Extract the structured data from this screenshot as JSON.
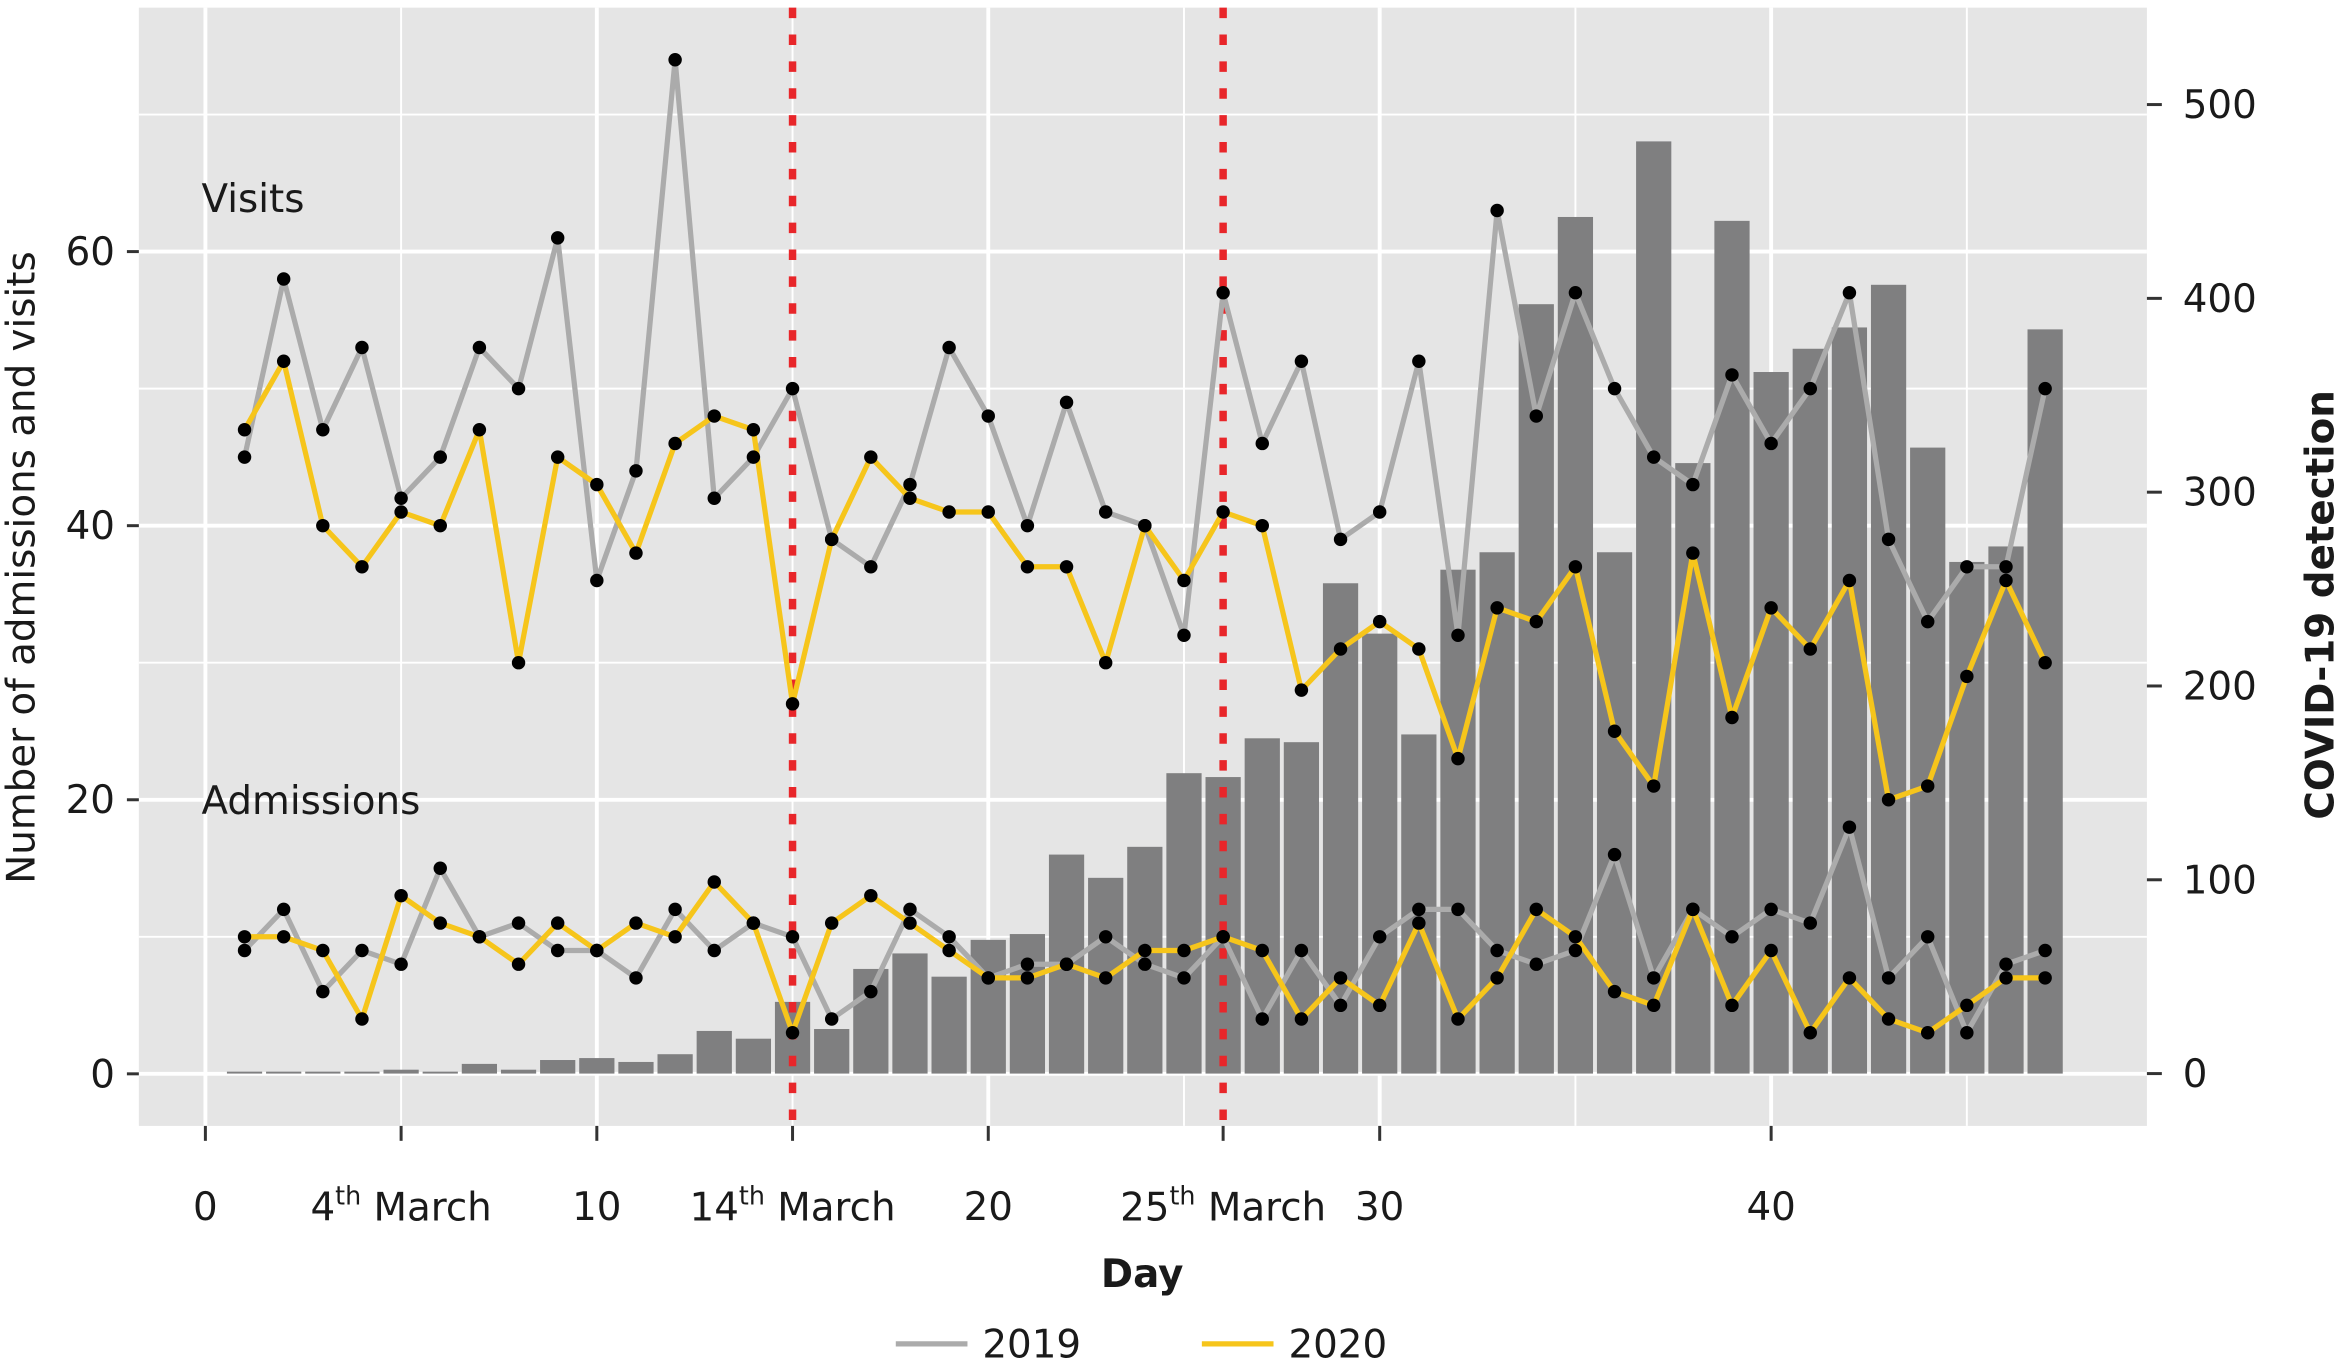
{
  "chart_data": {
    "type": "line",
    "x_label": "Day",
    "y_label": "Number of admissions and visits",
    "y2_label": "COVID-19 detection",
    "annotations": [
      "Visits",
      "Admissions"
    ],
    "x": [
      1,
      2,
      3,
      4,
      5,
      6,
      7,
      8,
      9,
      10,
      11,
      12,
      13,
      14,
      15,
      16,
      17,
      18,
      19,
      20,
      21,
      22,
      23,
      24,
      25,
      26,
      27,
      28,
      29,
      30,
      31,
      32,
      33,
      34,
      35,
      36,
      37,
      38,
      39,
      40,
      41,
      42,
      43,
      44,
      45,
      46,
      47
    ],
    "series": [
      {
        "name": "2019",
        "color": "#ababab",
        "values": [
          45,
          58,
          47,
          53,
          42,
          45,
          53,
          50,
          61,
          36,
          44,
          74,
          42,
          45,
          50,
          39,
          37,
          43,
          53,
          48,
          40,
          49,
          41,
          40,
          32,
          57,
          46,
          52,
          39,
          41,
          52,
          32,
          63,
          48,
          57,
          50,
          45,
          43,
          51,
          46,
          50,
          57,
          39,
          33,
          37,
          37,
          50
        ]
      },
      {
        "name": "2020",
        "color": "#f6c51b",
        "values": [
          47,
          52,
          40,
          37,
          41,
          40,
          47,
          30,
          45,
          43,
          38,
          46,
          48,
          47,
          27,
          39,
          45,
          42,
          41,
          41,
          37,
          37,
          30,
          40,
          36,
          41,
          40,
          28,
          31,
          33,
          31,
          23,
          34,
          33,
          37,
          25,
          21,
          38,
          26,
          34,
          31,
          36,
          20,
          21,
          29,
          36,
          30
        ]
      },
      {
        "color": "#ababab",
        "values": [
          9,
          12,
          6,
          9,
          8,
          15,
          10,
          11,
          9,
          9,
          7,
          12,
          9,
          11,
          10,
          4,
          6,
          12,
          10,
          7,
          8,
          8,
          10,
          8,
          7,
          10,
          4,
          9,
          5,
          10,
          12,
          12,
          9,
          8,
          9,
          16,
          7,
          12,
          10,
          12,
          11,
          18,
          7,
          10,
          3,
          8,
          9
        ]
      },
      {
        "color": "#f6c51b",
        "values": [
          10,
          10,
          9,
          4,
          13,
          11,
          10,
          8,
          11,
          9,
          11,
          10,
          14,
          11,
          3,
          11,
          13,
          11,
          9,
          7,
          7,
          8,
          7,
          9,
          9,
          10,
          9,
          4,
          7,
          5,
          11,
          4,
          7,
          12,
          10,
          6,
          5,
          12,
          5,
          9,
          3,
          7,
          4,
          3,
          5,
          7,
          7
        ]
      },
      {
        "type": "bar",
        "axis": "y2",
        "color": "#7f7f80",
        "values": [
          1,
          1,
          1,
          1,
          2,
          1,
          5,
          2,
          7,
          8,
          6,
          10,
          22,
          18,
          37,
          23,
          54,
          62,
          50,
          69,
          72,
          113,
          101,
          117,
          155,
          153,
          173,
          171,
          253,
          227,
          175,
          260,
          269,
          397,
          442,
          269,
          481,
          315,
          440,
          362,
          374,
          385,
          407,
          323,
          264,
          272,
          384
        ]
      }
    ],
    "marker_color": "#000000",
    "xlim": [
      -1.7,
      49.6
    ],
    "xticks": [
      0,
      {
        "value": 5,
        "label": "4th March"
      },
      10,
      {
        "value": 15,
        "label": "14th March"
      },
      20,
      {
        "value": 26,
        "label": "25th March"
      },
      30,
      40
    ],
    "x_minor_grid": [
      5,
      15,
      25,
      35,
      45
    ],
    "ylim": [
      -3.8,
      77.8
    ],
    "yticks": [
      0,
      20,
      40,
      60
    ],
    "y_minor_grid": [
      10,
      30,
      50,
      70
    ],
    "y2lim": [
      -27,
      550
    ],
    "y2ticks": [
      0,
      100,
      200,
      300,
      400,
      500
    ],
    "vlines": [
      15,
      26
    ],
    "vline_color": "#e8262a",
    "grid": true,
    "legend": "bottom"
  }
}
